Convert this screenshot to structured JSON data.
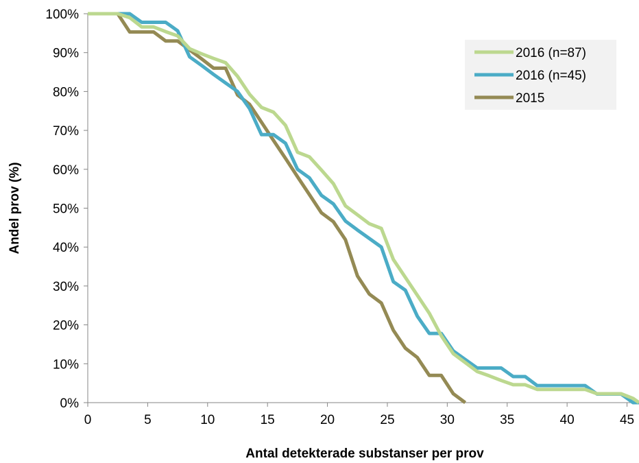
{
  "chart_data": {
    "type": "line",
    "xlabel": "Antal detekterade substanser per prov",
    "ylabel": "Andel prov (%)",
    "xlim": [
      0,
      46
    ],
    "ylim": [
      0,
      100
    ],
    "x_ticks": [
      0,
      5,
      10,
      15,
      20,
      25,
      30,
      35,
      40,
      45
    ],
    "x_tick_labels": [
      "0",
      "5",
      "10",
      "15",
      "20",
      "25",
      "30",
      "35",
      "40",
      "45"
    ],
    "y_ticks": [
      0,
      10,
      20,
      30,
      40,
      50,
      60,
      70,
      80,
      90,
      100
    ],
    "y_tick_labels": [
      "0%",
      "10%",
      "20%",
      "30%",
      "40%",
      "50%",
      "60%",
      "70%",
      "80%",
      "90%",
      "100%"
    ],
    "grid": false,
    "legend_position": "top-right",
    "series": [
      {
        "name": "2016 (n=87)",
        "color": "#bcd88f",
        "x": [
          0,
          2.5,
          3.5,
          4.5,
          5.5,
          6.5,
          7.5,
          8.5,
          9.5,
          10.5,
          11.5,
          12.5,
          13.5,
          14.5,
          15.5,
          16.5,
          17.5,
          18.5,
          19.5,
          20.5,
          21.5,
          22.5,
          23.5,
          24.5,
          25.5,
          26.5,
          27.5,
          28.5,
          29.5,
          30.5,
          31.5,
          32.5,
          33.5,
          34.5,
          35.5,
          36.5,
          37.5,
          38.5,
          39.5,
          40.5,
          41.5,
          42.5,
          43.5,
          44.5,
          45.5,
          46
        ],
        "y": [
          100,
          100,
          99,
          96.6,
          96.6,
          95.4,
          94.3,
          91,
          89.7,
          88.5,
          87.4,
          83.9,
          79.3,
          75.9,
          74.7,
          71.3,
          64.4,
          63.2,
          59.8,
          56.3,
          50.6,
          48.3,
          46,
          44.8,
          36.8,
          32.2,
          27.6,
          23,
          17.2,
          12.6,
          10.3,
          8,
          6.9,
          5.7,
          4.6,
          4.6,
          3.4,
          3.4,
          3.4,
          3.4,
          3.4,
          2.3,
          2.3,
          2.3,
          1.1,
          0
        ]
      },
      {
        "name": "2016 (n=45)",
        "color": "#4bacc6",
        "x": [
          0,
          3.5,
          4.5,
          5.5,
          6.5,
          7.5,
          8.5,
          9.5,
          10.5,
          11.5,
          12.5,
          13.5,
          14.5,
          15.5,
          16.5,
          17.5,
          18.5,
          19.5,
          20.5,
          21.5,
          22.5,
          23.5,
          24.5,
          25.5,
          26.5,
          27.5,
          28.5,
          29.5,
          30.5,
          31.5,
          32.5,
          33.5,
          34.5,
          35.5,
          36.5,
          37.5,
          38.5,
          39.5,
          40.5,
          41.5,
          42.5,
          43.5,
          44.5,
          45.5,
          46
        ],
        "y": [
          100,
          100,
          97.8,
          97.8,
          97.8,
          95.6,
          88.9,
          86.7,
          84.4,
          82.2,
          80,
          75.6,
          68.9,
          68.9,
          66.7,
          60,
          57.8,
          53.3,
          51.1,
          46.7,
          44.4,
          42.2,
          40,
          31.1,
          28.9,
          22.2,
          17.8,
          17.8,
          13.3,
          11.1,
          8.9,
          8.9,
          8.9,
          6.7,
          6.7,
          4.4,
          4.4,
          4.4,
          4.4,
          4.4,
          2.2,
          2.2,
          2.2,
          0,
          0
        ]
      },
      {
        "name": "2015",
        "color": "#948a54",
        "x": [
          0,
          2.5,
          3.5,
          4.5,
          5.5,
          6.5,
          7.5,
          8.5,
          9.5,
          10.5,
          11.5,
          12.5,
          13.5,
          14.5,
          15.5,
          16.5,
          17.5,
          18.5,
          19.5,
          20.5,
          21.5,
          22.5,
          23.5,
          24.5,
          25.5,
          26.5,
          27.5,
          28.5,
          29.5,
          30.5,
          31.5
        ],
        "y": [
          100,
          100,
          95.3,
          95.3,
          95.3,
          93,
          93,
          90.7,
          88.4,
          86,
          86,
          79.1,
          76.7,
          72.1,
          67.4,
          62.8,
          58.1,
          53.5,
          48.8,
          46.5,
          41.9,
          32.6,
          27.9,
          25.6,
          18.6,
          14,
          11.6,
          7,
          7,
          2.3,
          0
        ]
      }
    ]
  }
}
